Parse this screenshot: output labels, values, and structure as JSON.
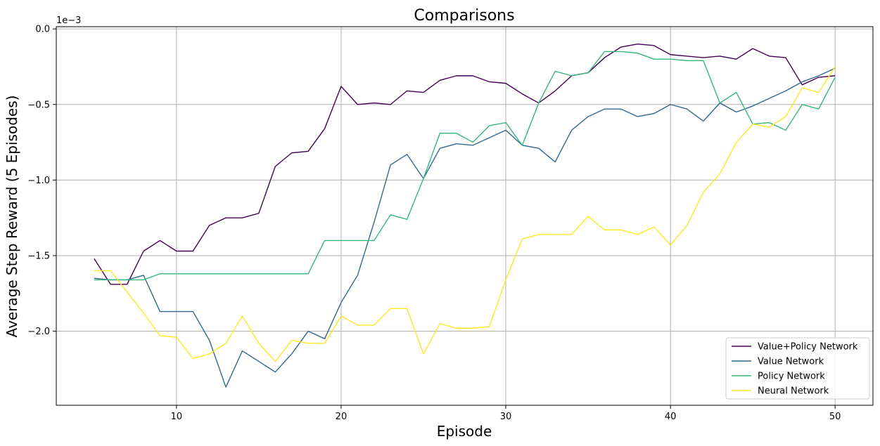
{
  "chart_data": {
    "type": "line",
    "title": "Comparisons",
    "xlabel": "Episode",
    "ylabel": "Average Step Reward (5 Episodes)",
    "y_offset_label": "1e−3",
    "xlim": [
      2.7,
      52.3
    ],
    "ylim": [
      -2.49,
      0.0147
    ],
    "xticks": [
      10,
      20,
      30,
      40,
      50
    ],
    "yticks": [
      0.0,
      -0.5,
      -1.0,
      -1.5,
      -2.0
    ],
    "xtick_labels": [
      "10",
      "20",
      "30",
      "40",
      "50"
    ],
    "ytick_labels": [
      "0.0",
      "−0.5",
      "−1.0",
      "−1.5",
      "−2.0"
    ],
    "grid": true,
    "legend_position": "lower-right",
    "x": [
      5,
      6,
      7,
      8,
      9,
      10,
      11,
      12,
      13,
      14,
      15,
      16,
      17,
      18,
      19,
      20,
      21,
      22,
      23,
      24,
      25,
      26,
      27,
      28,
      29,
      30,
      31,
      32,
      33,
      34,
      35,
      36,
      37,
      38,
      39,
      40,
      41,
      42,
      43,
      44,
      45,
      46,
      47,
      48,
      49,
      50
    ],
    "series": [
      {
        "name": "Value+Policy Network",
        "color": "#440154",
        "values": [
          -1.52,
          -1.69,
          -1.69,
          -1.47,
          -1.4,
          -1.47,
          -1.47,
          -1.3,
          -1.25,
          -1.25,
          -1.22,
          -0.91,
          -0.82,
          -0.81,
          -0.66,
          -0.38,
          -0.5,
          -0.49,
          -0.5,
          -0.41,
          -0.42,
          -0.34,
          -0.31,
          -0.31,
          -0.35,
          -0.36,
          -0.43,
          -0.49,
          -0.41,
          -0.31,
          -0.29,
          -0.19,
          -0.12,
          -0.1,
          -0.11,
          -0.17,
          -0.18,
          -0.19,
          -0.18,
          -0.2,
          -0.13,
          -0.18,
          -0.19,
          -0.37,
          -0.32,
          -0.31
        ]
      },
      {
        "name": "Value Network",
        "color": "#31688e",
        "values": [
          -1.65,
          -1.66,
          -1.66,
          -1.63,
          -1.87,
          -1.87,
          -1.87,
          -2.06,
          -2.37,
          -2.13,
          -2.2,
          -2.27,
          -2.15,
          -2.0,
          -2.05,
          -1.81,
          -1.63,
          -1.28,
          -0.9,
          -0.83,
          -0.99,
          -0.79,
          -0.76,
          -0.77,
          -0.72,
          -0.67,
          -0.77,
          -0.79,
          -0.88,
          -0.67,
          -0.58,
          -0.53,
          -0.53,
          -0.58,
          -0.56,
          -0.5,
          -0.53,
          -0.61,
          -0.49,
          -0.55,
          -0.51,
          -0.46,
          -0.41,
          -0.35,
          -0.31,
          -0.26
        ]
      },
      {
        "name": "Policy Network",
        "color": "#35b779",
        "values": [
          -1.66,
          -1.66,
          -1.66,
          -1.66,
          -1.62,
          -1.62,
          -1.62,
          -1.62,
          -1.62,
          -1.62,
          -1.62,
          -1.62,
          -1.62,
          -1.62,
          -1.4,
          -1.4,
          -1.4,
          -1.4,
          -1.23,
          -1.26,
          -0.99,
          -0.69,
          -0.69,
          -0.75,
          -0.64,
          -0.62,
          -0.77,
          -0.49,
          -0.28,
          -0.31,
          -0.29,
          -0.15,
          -0.15,
          -0.16,
          -0.2,
          -0.2,
          -0.21,
          -0.21,
          -0.49,
          -0.42,
          -0.63,
          -0.62,
          -0.67,
          -0.5,
          -0.53,
          -0.32
        ]
      },
      {
        "name": "Neural Network",
        "color": "#fde725",
        "values": [
          -1.6,
          -1.6,
          -1.74,
          -1.88,
          -2.03,
          -2.04,
          -2.18,
          -2.15,
          -2.08,
          -1.9,
          -2.08,
          -2.2,
          -2.06,
          -2.08,
          -2.08,
          -1.9,
          -1.96,
          -1.96,
          -1.85,
          -1.85,
          -2.15,
          -1.95,
          -1.98,
          -1.98,
          -1.97,
          -1.66,
          -1.39,
          -1.36,
          -1.36,
          -1.36,
          -1.24,
          -1.33,
          -1.33,
          -1.36,
          -1.31,
          -1.43,
          -1.3,
          -1.08,
          -0.96,
          -0.75,
          -0.63,
          -0.65,
          -0.58,
          -0.39,
          -0.42,
          -0.25
        ]
      }
    ]
  }
}
